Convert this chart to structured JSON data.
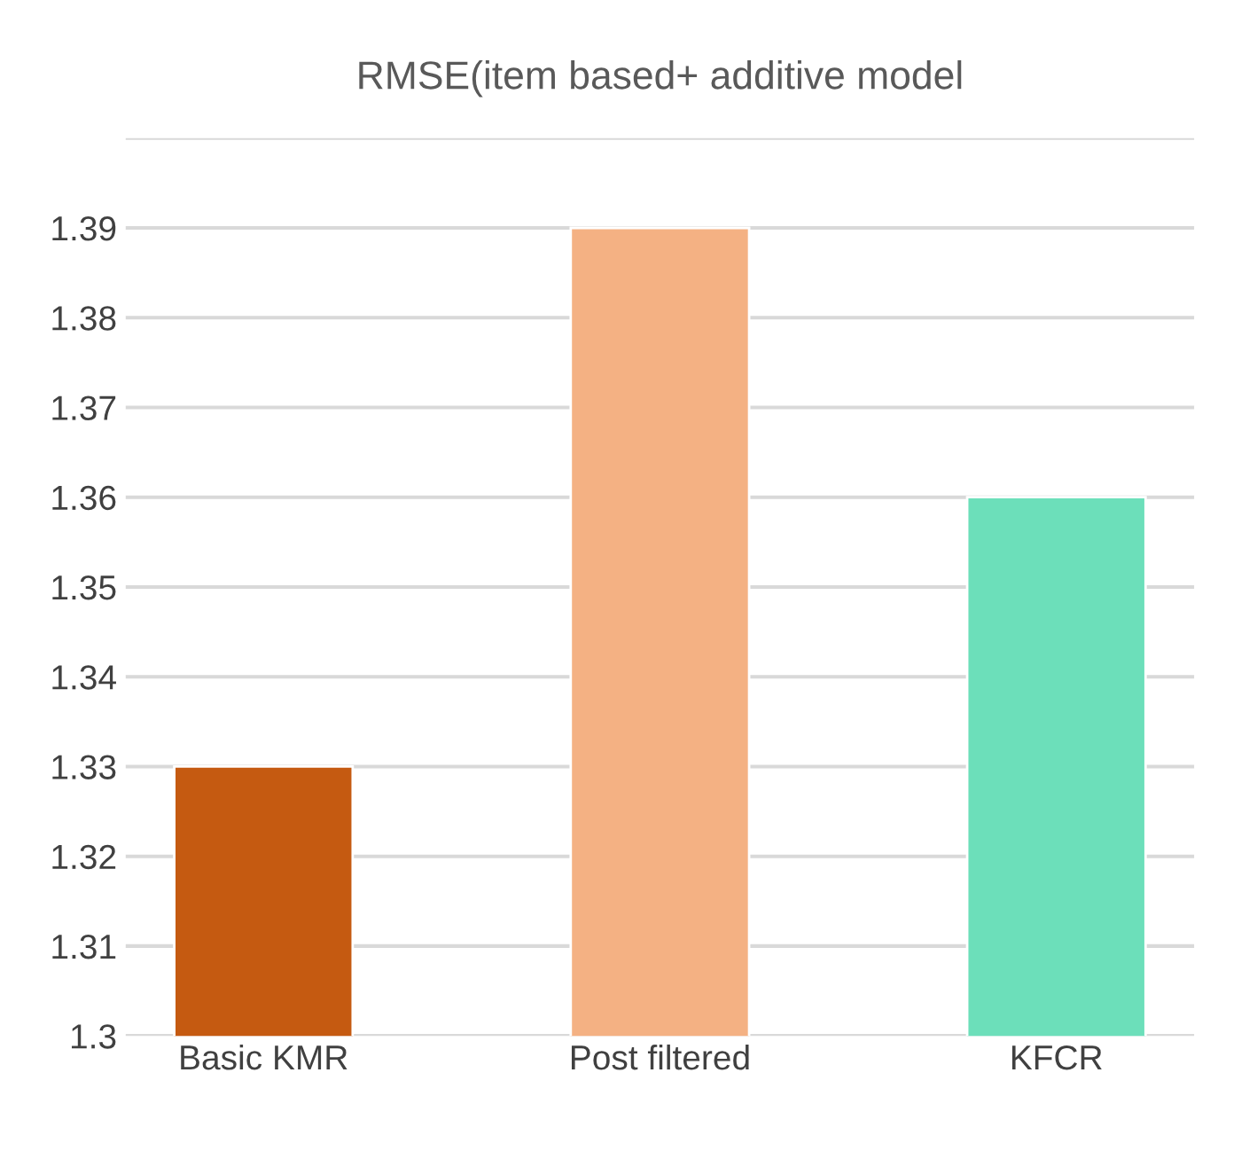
{
  "chart_data": {
    "type": "bar",
    "title": "RMSE(item based+ additive model",
    "categories": [
      "Basic KMR",
      "Post filtered",
      "KFCR"
    ],
    "values": [
      1.33,
      1.39,
      1.36
    ],
    "colors": [
      "#c55a11",
      "#f4b183",
      "#6cdfba"
    ],
    "ylim": [
      1.3,
      1.4
    ],
    "yticks": [
      1.3,
      1.31,
      1.32,
      1.33,
      1.34,
      1.35,
      1.36,
      1.37,
      1.38,
      1.39,
      {
        "value": 1.4,
        "label": null
      }
    ],
    "grid": "y"
  }
}
